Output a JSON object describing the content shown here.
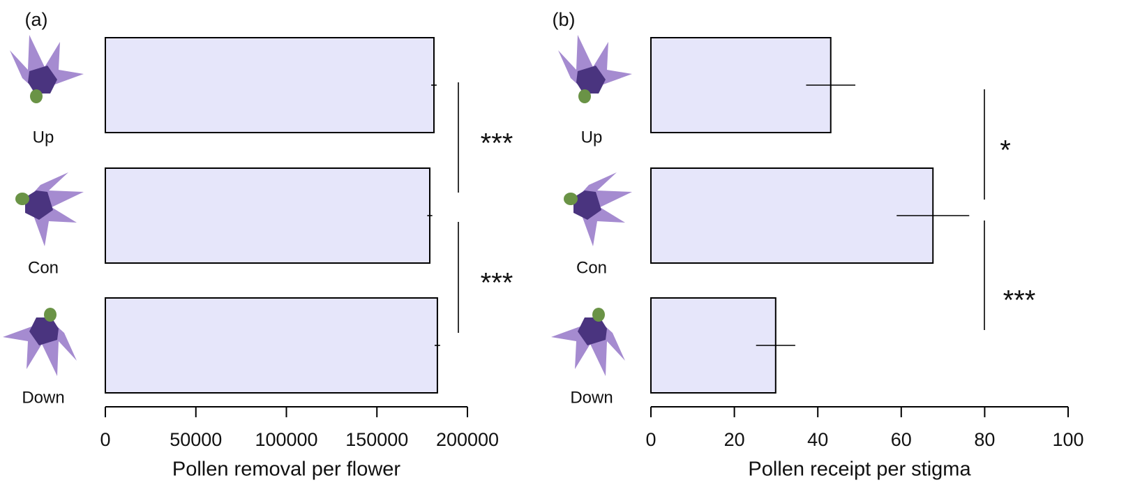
{
  "chart_data": [
    {
      "type": "bar",
      "orientation": "horizontal",
      "panel_label": "(a)",
      "x_label": "Pollen removal per flower",
      "categories": [
        "Up",
        "Con",
        "Down"
      ],
      "values": [
        181500,
        179200,
        183400
      ],
      "errors": [
        1500,
        1400,
        1500
      ],
      "color": "#e6e6fa",
      "xlim": [
        0,
        200000
      ],
      "xticks": [
        0,
        50000,
        100000,
        150000,
        200000
      ],
      "annotations": [
        "***",
        "***"
      ]
    },
    {
      "type": "bar",
      "orientation": "horizontal",
      "panel_label": "(b)",
      "x_label": "Pollen receipt per stigma",
      "categories": [
        "Up",
        "Con",
        "Down"
      ],
      "values": [
        43.1,
        67.6,
        29.9
      ],
      "errors": [
        5.9,
        8.7,
        4.7
      ],
      "color": "#e6e6fa",
      "xlim": [
        0,
        100
      ],
      "xticks": [
        0,
        20,
        40,
        60,
        80,
        100
      ],
      "annotations": [
        "*",
        "***"
      ]
    }
  ]
}
